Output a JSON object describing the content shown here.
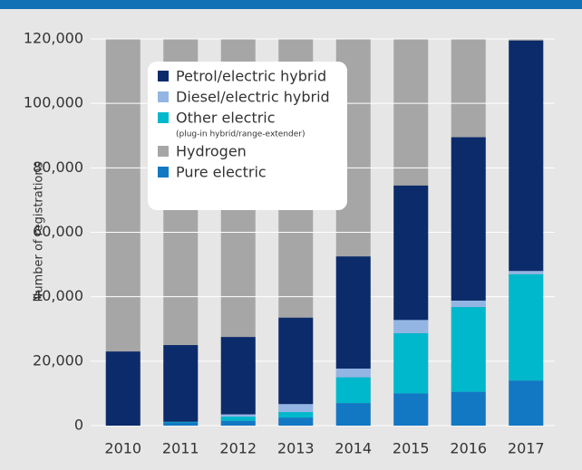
{
  "chart_data": {
    "type": "stacked_bar",
    "y_label": "Number of registrations",
    "categories": [
      "2010",
      "2011",
      "2012",
      "2013",
      "2014",
      "2015",
      "2016",
      "2017"
    ],
    "series": [
      {
        "name": "Pure electric",
        "color": "#1278c4",
        "values": [
          0,
          1000,
          1500,
          2500,
          7000,
          10000,
          10500,
          14000
        ]
      },
      {
        "name": "Other electric",
        "color": "#00b8cc",
        "values": [
          0,
          200,
          1300,
          1700,
          8000,
          18700,
          26300,
          33000
        ]
      },
      {
        "name": "Diesel/electric hybrid",
        "color": "#93b5e3",
        "values": [
          0,
          0,
          700,
          2500,
          2700,
          4100,
          2000,
          1000
        ]
      },
      {
        "name": "Hydrogen",
        "color": "#a6a6a6",
        "values": [
          0,
          0,
          0,
          0,
          0,
          0,
          0,
          0
        ]
      },
      {
        "name": "Petrol/electric hybrid",
        "color": "#0b2b6b",
        "values": [
          23000,
          23800,
          24000,
          26800,
          34800,
          41700,
          50700,
          71500
        ]
      }
    ],
    "legend_order": [
      4,
      2,
      1,
      3,
      0
    ],
    "legend_note": "(plug-in hybrid/range-extender)",
    "ylim": [
      0,
      120000
    ],
    "yticks": [
      0,
      {
        "value": 20000,
        "label": "20,000"
      },
      {
        "value": 40000,
        "label": "40,000"
      },
      {
        "value": 60000,
        "label": "60,000"
      },
      {
        "value": 80000,
        "label": "80,000"
      },
      {
        "value": 100000,
        "label": "100,000"
      },
      {
        "value": 120000,
        "label": "120,000"
      }
    ],
    "grid": true
  }
}
